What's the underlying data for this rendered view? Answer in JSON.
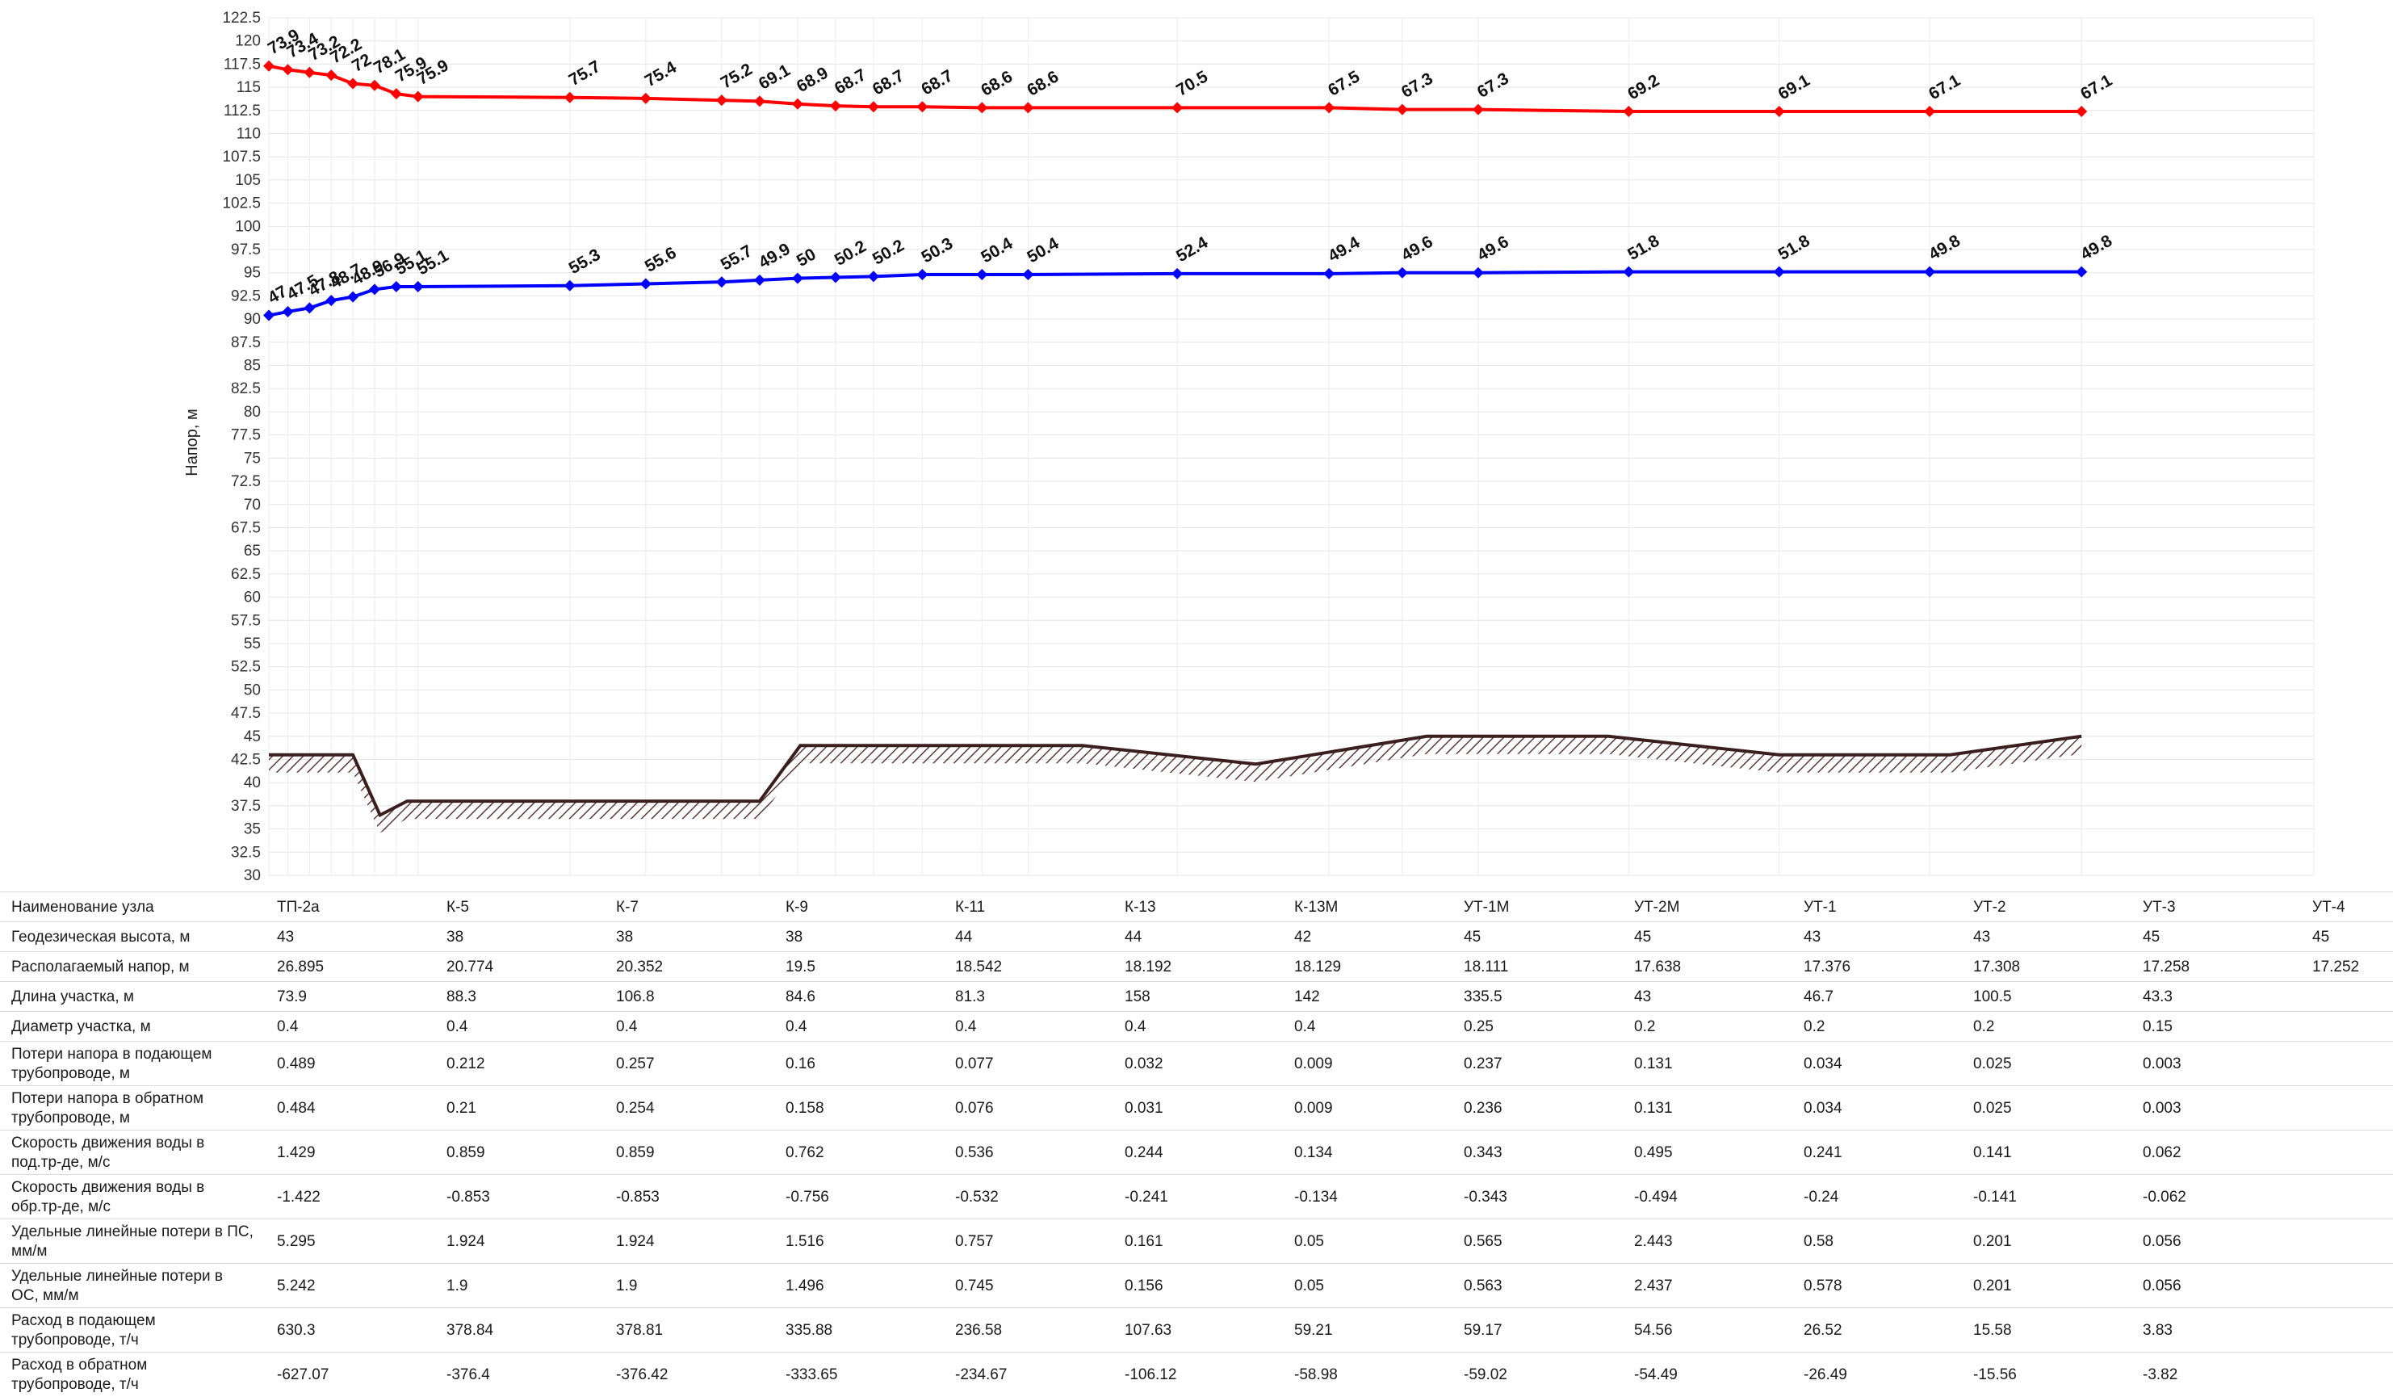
{
  "chart_data": {
    "type": "line",
    "title": "",
    "xlabel": "",
    "ylabel": "Напор, м",
    "ylim": [
      30,
      122.5
    ],
    "ystep": 2.5,
    "grid": true,
    "yticks": [
      "122.5",
      "120",
      "117.5",
      "115",
      "112.5",
      "110",
      "107.5",
      "105",
      "102.5",
      "100",
      "97.5",
      "95",
      "92.5",
      "90",
      "87.5",
      "85",
      "82.5",
      "80",
      "77.5",
      "75",
      "72.5",
      "70",
      "67.5",
      "65",
      "62.5",
      "60",
      "57.5",
      "55",
      "52.5",
      "50",
      "47.5",
      "45",
      "42.5",
      "40",
      "37.5",
      "35",
      "32.5",
      "30"
    ],
    "x_max": 1508.4,
    "x": [
      0,
      14,
      30,
      46,
      62,
      78,
      94,
      110,
      222,
      278,
      334,
      362,
      390,
      418,
      446,
      482,
      526,
      560,
      670,
      782,
      836,
      892,
      1003,
      1114,
      1225,
      1337
    ],
    "supply": {
      "color": "#ff0000",
      "y": [
        117.3,
        116.9,
        116.6,
        116.3,
        115.4,
        115.2,
        114.3,
        114.0,
        113.9,
        113.8,
        113.6,
        113.5,
        113.2,
        113.0,
        112.9,
        112.9,
        112.8,
        112.8,
        112.8,
        112.8,
        112.6,
        112.6,
        112.4,
        112.4,
        112.4,
        112.4
      ],
      "labels": [
        "73.9",
        "73.4",
        "73.2",
        "72.2",
        "72",
        "78.1",
        "75.9",
        "75.9",
        "75.7",
        "75.4",
        "75.2",
        "69.1",
        "68.9",
        "68.7",
        "68.7",
        "68.7",
        "68.6",
        "68.6",
        "70.5",
        "67.5",
        "67.3",
        "67.3",
        "69.2",
        "69.1",
        "67.1",
        "67.1"
      ]
    },
    "return": {
      "color": "#0000ff",
      "y": [
        90.4,
        90.8,
        91.2,
        92.0,
        92.4,
        93.2,
        93.5,
        93.5,
        93.6,
        93.8,
        94.0,
        94.2,
        94.4,
        94.5,
        94.6,
        94.8,
        94.8,
        94.8,
        94.9,
        94.9,
        95.0,
        95.0,
        95.1,
        95.1,
        95.1,
        95.1
      ],
      "labels": [
        "47",
        "47.5",
        "47.8",
        "48.7",
        "48.9",
        "56.9",
        "55.1",
        "55.1",
        "55.3",
        "55.6",
        "55.7",
        "49.9",
        "50",
        "50.2",
        "50.2",
        "50.3",
        "50.4",
        "50.4",
        "52.4",
        "49.4",
        "49.6",
        "49.6",
        "51.8",
        "51.8",
        "49.8",
        "49.8"
      ]
    },
    "ground": {
      "x": [
        0,
        62,
        82,
        102,
        148,
        362,
        392,
        600,
        728,
        854,
        988,
        1114,
        1240,
        1337
      ],
      "y": [
        43,
        43,
        36.5,
        38,
        38,
        38,
        44,
        44,
        42,
        45,
        45,
        43,
        43,
        45
      ]
    }
  },
  "table": {
    "rows": [
      {
        "label": [
          "Наименование узла"
        ],
        "cells": [
          "ТП-2а",
          "К-5",
          "К-7",
          "К-9",
          "К-11",
          "К-13",
          "К-13М",
          "УТ-1М",
          "УТ-2М",
          "УТ-1",
          "УТ-2",
          "УТ-3",
          "УТ-4"
        ]
      },
      {
        "label": [
          "Геодезическая высота, м"
        ],
        "cells": [
          "43",
          "38",
          "38",
          "38",
          "44",
          "44",
          "42",
          "45",
          "45",
          "43",
          "43",
          "45",
          "45"
        ]
      },
      {
        "label": [
          "Располагаемый напор, м"
        ],
        "cells": [
          "26.895",
          "20.774",
          "20.352",
          "19.5",
          "18.542",
          "18.192",
          "18.129",
          "18.111",
          "17.638",
          "17.376",
          "17.308",
          "17.258",
          "17.252"
        ]
      },
      {
        "label": [
          "Длина участка, м"
        ],
        "cells": [
          "73.9",
          "88.3",
          "106.8",
          "84.6",
          "81.3",
          "158",
          "142",
          "335.5",
          "43",
          "46.7",
          "100.5",
          "43.3",
          ""
        ]
      },
      {
        "label": [
          "Диаметр участка, м"
        ],
        "cells": [
          "0.4",
          "0.4",
          "0.4",
          "0.4",
          "0.4",
          "0.4",
          "0.4",
          "0.25",
          "0.2",
          "0.2",
          "0.2",
          "0.15",
          ""
        ]
      },
      {
        "label": [
          "Потери напора в подающем",
          "трубопроводе, м"
        ],
        "cells": [
          "0.489",
          "0.212",
          "0.257",
          "0.16",
          "0.077",
          "0.032",
          "0.009",
          "0.237",
          "0.131",
          "0.034",
          "0.025",
          "0.003",
          ""
        ]
      },
      {
        "label": [
          "Потери напора в обратном",
          "трубопроводе, м"
        ],
        "cells": [
          "0.484",
          "0.21",
          "0.254",
          "0.158",
          "0.076",
          "0.031",
          "0.009",
          "0.236",
          "0.131",
          "0.034",
          "0.025",
          "0.003",
          ""
        ]
      },
      {
        "label": [
          "Скорость движения воды в",
          "под.тр-де, м/с"
        ],
        "cells": [
          "1.429",
          "0.859",
          "0.859",
          "0.762",
          "0.536",
          "0.244",
          "0.134",
          "0.343",
          "0.495",
          "0.241",
          "0.141",
          "0.062",
          ""
        ]
      },
      {
        "label": [
          "Скорость движения воды в",
          "обр.тр-де, м/с"
        ],
        "cells": [
          "-1.422",
          "-0.853",
          "-0.853",
          "-0.756",
          "-0.532",
          "-0.241",
          "-0.134",
          "-0.343",
          "-0.494",
          "-0.24",
          "-0.141",
          "-0.062",
          ""
        ]
      },
      {
        "label": [
          "Удельные линейные потери в",
          "ПС, мм/м"
        ],
        "cells": [
          "5.295",
          "1.924",
          "1.924",
          "1.516",
          "0.757",
          "0.161",
          "0.05",
          "0.565",
          "2.443",
          "0.58",
          "0.201",
          "0.056",
          ""
        ]
      },
      {
        "label": [
          "Удельные линейные потери в",
          "ОС, мм/м"
        ],
        "cells": [
          "5.242",
          "1.9",
          "1.9",
          "1.496",
          "0.745",
          "0.156",
          "0.05",
          "0.563",
          "2.437",
          "0.578",
          "0.201",
          "0.056",
          ""
        ]
      },
      {
        "label": [
          "Расход в подающем",
          "трубопроводе, т/ч"
        ],
        "cells": [
          "630.3",
          "378.84",
          "378.81",
          "335.88",
          "236.58",
          "107.63",
          "59.21",
          "59.17",
          "54.56",
          "26.52",
          "15.58",
          "3.83",
          ""
        ]
      },
      {
        "label": [
          "Расход в обратном",
          "трубопроводе, т/ч"
        ],
        "cells": [
          "-627.07",
          "-376.4",
          "-376.42",
          "-333.65",
          "-234.67",
          "-106.12",
          "-58.98",
          "-59.02",
          "-54.49",
          "-26.49",
          "-15.56",
          "-3.82",
          ""
        ]
      }
    ]
  }
}
